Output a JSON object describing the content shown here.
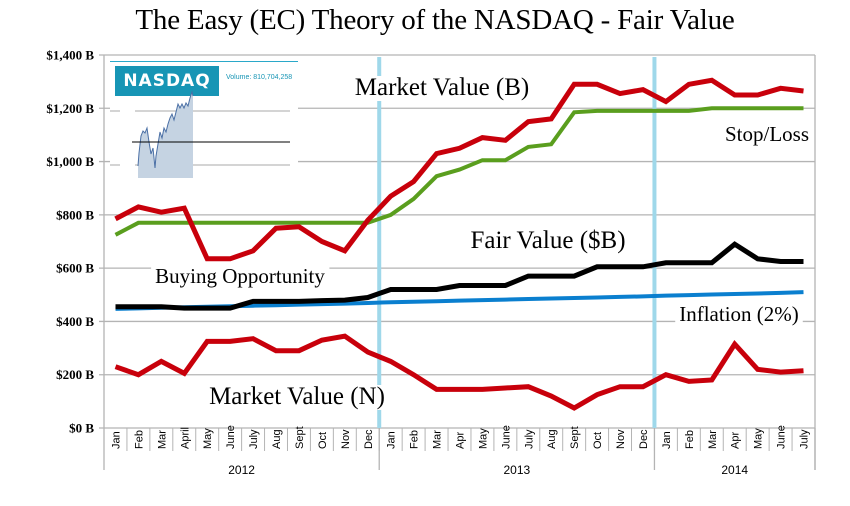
{
  "chart_data": {
    "type": "line",
    "title": "The Easy (EC) Theory of the NASDAQ - Fair Value",
    "xlabel": "",
    "ylabel": "",
    "ylim": [
      0,
      1400
    ],
    "y_ticks": [
      0,
      200,
      400,
      600,
      800,
      1000,
      1200,
      1400
    ],
    "y_tick_labels": [
      "$0 B",
      "$200 B",
      "$400 B",
      "$600 B",
      "$800 B",
      "$1,000 B",
      "$1,200 B",
      "$1,400 B"
    ],
    "grid": true,
    "categories": [
      "Jan",
      "Feb",
      "Mar",
      "April",
      "May",
      "June",
      "July",
      "Aug",
      "Sept",
      "Oct",
      "Nov",
      "Dec",
      "Jan",
      "Feb",
      "Mar",
      "Apr",
      "May",
      "June",
      "July",
      "Aug",
      "Sept",
      "Oct",
      "Nov",
      "Dec",
      "Jan",
      "Feb",
      "Mar",
      "Apr",
      "May",
      "June",
      "July"
    ],
    "year_groups": [
      {
        "label": "2012",
        "start": 0,
        "end": 11
      },
      {
        "label": "2013",
        "start": 12,
        "end": 23
      },
      {
        "label": "2014",
        "start": 24,
        "end": 30
      }
    ],
    "series": [
      {
        "name": "Market Value (B)",
        "color": "#c8000b",
        "values": [
          785,
          830,
          810,
          825,
          635,
          635,
          665,
          750,
          755,
          700,
          665,
          780,
          870,
          925,
          1030,
          1050,
          1090,
          1080,
          1150,
          1160,
          1290,
          1290,
          1255,
          1270,
          1225,
          1290,
          1305,
          1250,
          1250,
          1275,
          1265
        ]
      },
      {
        "name": "Stop/Loss",
        "color": "#5a9e1e",
        "values": [
          725,
          770,
          770,
          770,
          770,
          770,
          770,
          770,
          770,
          770,
          770,
          770,
          800,
          860,
          945,
          970,
          1005,
          1005,
          1055,
          1065,
          1185,
          1190,
          1190,
          1190,
          1190,
          1190,
          1200,
          1200,
          1200,
          1200,
          1200
        ]
      },
      {
        "name": "Fair Value ($B)",
        "color": "#000000",
        "values": [
          455,
          455,
          455,
          450,
          450,
          450,
          475,
          475,
          475,
          478,
          480,
          490,
          520,
          520,
          520,
          535,
          535,
          535,
          570,
          570,
          570,
          605,
          605,
          605,
          620,
          620,
          620,
          690,
          635,
          625,
          625
        ]
      },
      {
        "name": "Inflation (2%)",
        "color": "#0a7fcf",
        "values": [
          447,
          449,
          451,
          453,
          455,
          457,
          459,
          461,
          463,
          465,
          467,
          469,
          472,
          474,
          476,
          478,
          480,
          482,
          484,
          486,
          488,
          490,
          492,
          494,
          497,
          499,
          501,
          503,
          505,
          507,
          510
        ]
      },
      {
        "name": "Market Value (N)",
        "color": "#c8000b",
        "values": [
          230,
          200,
          250,
          205,
          325,
          325,
          335,
          290,
          290,
          330,
          345,
          285,
          250,
          200,
          145,
          145,
          145,
          150,
          155,
          120,
          75,
          125,
          155,
          155,
          200,
          175,
          180,
          315,
          220,
          210,
          215
        ]
      }
    ],
    "vertical_markers": [
      {
        "between": [
          11,
          12
        ],
        "color": "#9fd8ea"
      },
      {
        "between": [
          23,
          24
        ],
        "color": "#9fd8ea"
      }
    ],
    "annotations": [
      {
        "text": "Market Value (B)",
        "series": "Market Value (B)"
      },
      {
        "text": "Stop/Loss",
        "series": "Stop/Loss"
      },
      {
        "text": "Fair Value ($B)",
        "series": "Fair Value ($B)"
      },
      {
        "text": "Buying Opportunity",
        "series": "Market Value (B)"
      },
      {
        "text": "Inflation (2%)",
        "series": "Inflation (2%)"
      },
      {
        "text": "Market Value (N)",
        "series": "Market Value (N)"
      }
    ],
    "legend": "none (inline annotations)"
  },
  "inset": {
    "logo_text": "NASDAQ",
    "volume_text": "Volume: 810,704,258"
  }
}
